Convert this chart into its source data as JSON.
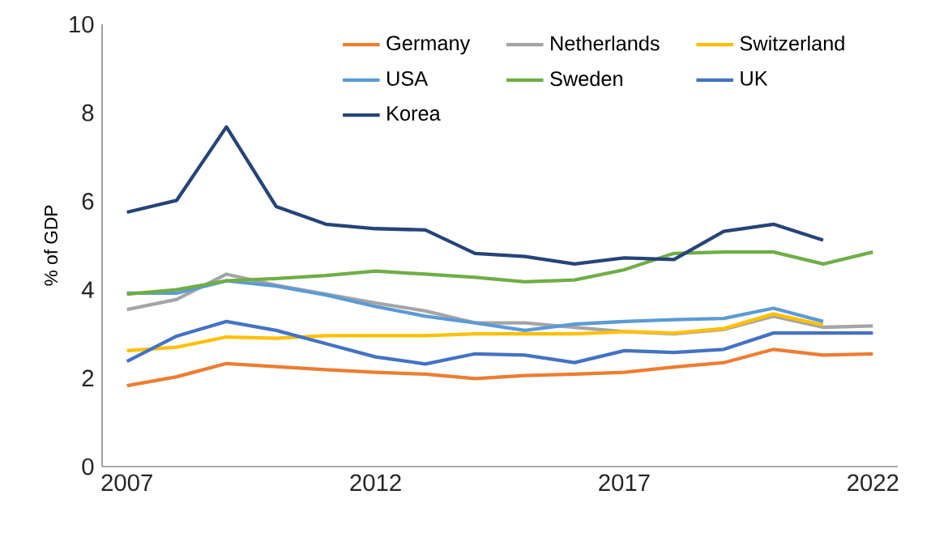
{
  "chart_data": {
    "type": "line",
    "ylabel": "% of GDP",
    "x": [
      2007,
      2008,
      2009,
      2010,
      2011,
      2012,
      2013,
      2014,
      2015,
      2016,
      2017,
      2018,
      2019,
      2020,
      2021,
      2022
    ],
    "xlim": [
      2006.5,
      2022.5
    ],
    "xticks": [
      2007,
      2012,
      2017,
      2022
    ],
    "ylim": [
      0,
      10
    ],
    "yticks": [
      0,
      2,
      4,
      6,
      8,
      10
    ],
    "grid": false,
    "legend": "top",
    "series": [
      {
        "name": "Germany",
        "color": "#ed7d31",
        "values": [
          1.83,
          2.03,
          2.33,
          2.26,
          2.19,
          2.13,
          2.09,
          1.99,
          2.06,
          2.09,
          2.13,
          2.25,
          2.35,
          2.65,
          2.52,
          2.55
        ]
      },
      {
        "name": "Netherlands",
        "color": "#a5a5a5",
        "values": [
          3.55,
          3.78,
          4.35,
          4.1,
          3.9,
          3.7,
          3.52,
          3.25,
          3.25,
          3.15,
          3.05,
          3.0,
          3.1,
          3.4,
          3.15,
          3.18
        ]
      },
      {
        "name": "Switzerland",
        "color": "#ffc000",
        "values": [
          2.62,
          2.7,
          2.93,
          2.9,
          2.96,
          2.96,
          2.96,
          3.0,
          3.0,
          3.0,
          3.05,
          3.02,
          3.12,
          3.45,
          3.2,
          null
        ]
      },
      {
        "name": "USA",
        "color": "#5b9bd5",
        "values": [
          3.92,
          3.92,
          4.2,
          4.08,
          3.88,
          3.62,
          3.4,
          3.25,
          3.08,
          3.22,
          3.28,
          3.32,
          3.35,
          3.58,
          3.28,
          null
        ]
      },
      {
        "name": "Sweden",
        "color": "#70ad47",
        "values": [
          3.9,
          4.0,
          4.2,
          4.25,
          4.32,
          4.42,
          4.35,
          4.28,
          4.18,
          4.22,
          4.45,
          4.82,
          4.85,
          4.85,
          4.58,
          4.85
        ]
      },
      {
        "name": "UK",
        "color": "#4472c4",
        "values": [
          2.38,
          2.95,
          3.28,
          3.08,
          2.78,
          2.48,
          2.32,
          2.55,
          2.52,
          2.35,
          2.62,
          2.58,
          2.65,
          3.02,
          3.02,
          3.02
        ]
      },
      {
        "name": "Korea",
        "color": "#264478",
        "values": [
          5.75,
          6.02,
          7.68,
          5.88,
          5.48,
          5.38,
          5.35,
          4.82,
          4.75,
          4.58,
          4.72,
          4.68,
          5.32,
          5.48,
          5.12,
          null
        ]
      }
    ]
  }
}
